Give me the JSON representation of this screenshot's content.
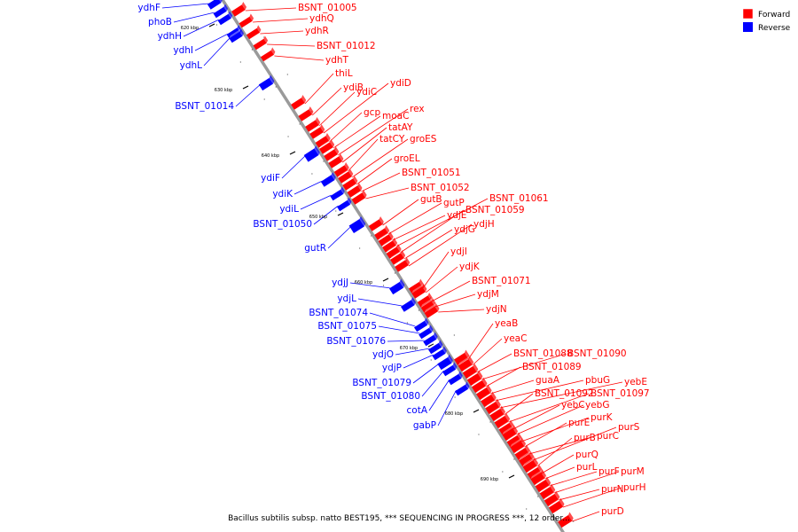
{
  "caption": "Bacillus subtilis subsp. natto BEST195, *** SEQUENCING IN PROGRESS ***, 12 order...",
  "legend": {
    "forward": {
      "label": "Forward",
      "color": "#ff0000"
    },
    "reverse": {
      "label": "Reverse",
      "color": "#0000ff"
    }
  },
  "ticks": [
    "620 kbp",
    "630 kbp",
    "640 kbp",
    "650 kbp",
    "660 kbp",
    "670 kbp",
    "680 kbp",
    "690 kbp"
  ],
  "forward_genes": [
    "BSNT_01005",
    "ydhQ",
    "ydhR",
    "BSNT_01012",
    "ydhT",
    "thiL",
    "ydiB",
    "ydiC",
    "ydiD",
    "gcp",
    "moaC",
    "rex",
    "tatAY",
    "tatCY",
    "groES",
    "groEL",
    "BSNT_01051",
    "BSNT_01052",
    "gutB",
    "gutP",
    "ydjE",
    "BSNT_01061",
    "BSNT_01059",
    "ydjG",
    "ydjH",
    "ydjI",
    "ydjK",
    "BSNT_01071",
    "ydjM",
    "ydjN",
    "yeaB",
    "yeaC",
    "BSNT_01088",
    "BSNT_01090",
    "BSNT_01089",
    "guaA",
    "pbuG",
    "yebE",
    "BSNT_01092",
    "BSNT_01097",
    "yebC",
    "yebG",
    "purK",
    "purE",
    "purC",
    "purS",
    "purB",
    "purQ",
    "purL",
    "purF",
    "purM",
    "purN",
    "purH",
    "purD"
  ],
  "reverse_genes": [
    "ydhF",
    "phoB",
    "ydhH",
    "ydhI",
    "ydhL",
    "BSNT_01014",
    "ydiF",
    "ydiK",
    "ydiL",
    "BSNT_01050",
    "gutR",
    "ydjJ",
    "ydjL",
    "BSNT_01074",
    "BSNT_01075",
    "BSNT_01076",
    "ydjO",
    "ydjP",
    "BSNT_01079",
    "BSNT_01080",
    "cotA",
    "gabP"
  ]
}
